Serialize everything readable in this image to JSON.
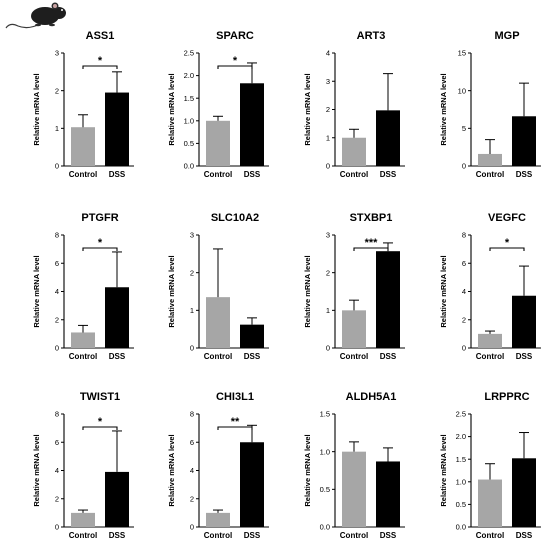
{
  "figure": {
    "icon": "mouse-icon",
    "colors": {
      "control_bar": "#a6a6a6",
      "dss_bar": "#000000",
      "axis": "#000000"
    }
  },
  "chart_data": [
    {
      "type": "bar",
      "title": "ASS1",
      "ylabel": "Relative mRNA level",
      "categories": [
        "Control",
        "DSS"
      ],
      "values": [
        1.03,
        1.95
      ],
      "errors": [
        0.33,
        0.55
      ],
      "ylim": [
        0,
        3
      ],
      "yticks": [
        "0",
        "1",
        "2",
        "3"
      ],
      "significance": "*"
    },
    {
      "type": "bar",
      "title": "SPARC",
      "ylabel": "Relative mRNA level",
      "categories": [
        "Control",
        "DSS"
      ],
      "values": [
        1.0,
        1.83
      ],
      "errors": [
        0.1,
        0.45
      ],
      "ylim": [
        0,
        2.5
      ],
      "yticks": [
        "0.0",
        "0.5",
        "1.0",
        "1.5",
        "2.0",
        "2.5"
      ],
      "significance": "*"
    },
    {
      "type": "bar",
      "title": "ART3",
      "ylabel": "Relative mRNA level",
      "categories": [
        "Control",
        "DSS"
      ],
      "values": [
        1.0,
        1.97
      ],
      "errors": [
        0.3,
        1.3
      ],
      "ylim": [
        0,
        4
      ],
      "yticks": [
        "0",
        "1",
        "2",
        "3",
        "4"
      ],
      "significance": ""
    },
    {
      "type": "bar",
      "title": "MGP",
      "ylabel": "Relative mRNA level",
      "categories": [
        "Control",
        "DSS"
      ],
      "values": [
        1.6,
        6.6
      ],
      "errors": [
        1.9,
        4.4
      ],
      "ylim": [
        0,
        15
      ],
      "yticks": [
        "0",
        "5",
        "10",
        "15"
      ],
      "significance": ""
    },
    {
      "type": "bar",
      "title": "PTGFR",
      "ylabel": "Relative mRNA level",
      "categories": [
        "Control",
        "DSS"
      ],
      "values": [
        1.1,
        4.3
      ],
      "errors": [
        0.5,
        2.5
      ],
      "ylim": [
        0,
        8
      ],
      "yticks": [
        "0",
        "2",
        "4",
        "6",
        "8"
      ],
      "significance": "*"
    },
    {
      "type": "bar",
      "title": "SLC10A2",
      "ylabel": "Relative mRNA level",
      "categories": [
        "Control",
        "DSS"
      ],
      "values": [
        1.35,
        0.62
      ],
      "errors": [
        1.28,
        0.18
      ],
      "ylim": [
        0,
        3
      ],
      "yticks": [
        "0",
        "1",
        "2",
        "3"
      ],
      "significance": ""
    },
    {
      "type": "bar",
      "title": "STXBP1",
      "ylabel": "Relative mRNA level",
      "categories": [
        "Control",
        "DSS"
      ],
      "values": [
        1.0,
        2.57
      ],
      "errors": [
        0.27,
        0.22
      ],
      "ylim": [
        0,
        3
      ],
      "yticks": [
        "0",
        "1",
        "2",
        "3"
      ],
      "significance": "***"
    },
    {
      "type": "bar",
      "title": "VEGFC",
      "ylabel": "Relative mRNA level",
      "categories": [
        "Control",
        "DSS"
      ],
      "values": [
        1.0,
        3.7
      ],
      "errors": [
        0.2,
        2.1
      ],
      "ylim": [
        0,
        8
      ],
      "yticks": [
        "0",
        "2",
        "4",
        "6",
        "8"
      ],
      "significance": "*"
    },
    {
      "type": "bar",
      "title": "TWIST1",
      "ylabel": "Relative mRNA level",
      "categories": [
        "Control",
        "DSS"
      ],
      "values": [
        1.0,
        3.9
      ],
      "errors": [
        0.2,
        2.9
      ],
      "ylim": [
        0,
        8
      ],
      "yticks": [
        "0",
        "2",
        "4",
        "6",
        "8"
      ],
      "significance": "*"
    },
    {
      "type": "bar",
      "title": "CHI3L1",
      "ylabel": "Relative mRNA level",
      "categories": [
        "Control",
        "DSS"
      ],
      "values": [
        1.0,
        6.0
      ],
      "errors": [
        0.2,
        1.2
      ],
      "ylim": [
        0,
        8
      ],
      "yticks": [
        "0",
        "2",
        "4",
        "6",
        "8"
      ],
      "significance": "**"
    },
    {
      "type": "bar",
      "title": "ALDH5A1",
      "ylabel": "Relative mRNA level",
      "categories": [
        "Control",
        "DSS"
      ],
      "values": [
        1.0,
        0.87
      ],
      "errors": [
        0.13,
        0.18
      ],
      "ylim": [
        0,
        1.5
      ],
      "yticks": [
        "0.0",
        "0.5",
        "1.0",
        "1.5"
      ],
      "significance": ""
    },
    {
      "type": "bar",
      "title": "LRPPRC",
      "ylabel": "Relative mRNA level",
      "categories": [
        "Control",
        "DSS"
      ],
      "values": [
        1.05,
        1.52
      ],
      "errors": [
        0.35,
        0.57
      ],
      "ylim": [
        0,
        2.5
      ],
      "yticks": [
        "0.0",
        "0.5",
        "1.0",
        "1.5",
        "2.0",
        "2.5"
      ],
      "significance": ""
    }
  ]
}
